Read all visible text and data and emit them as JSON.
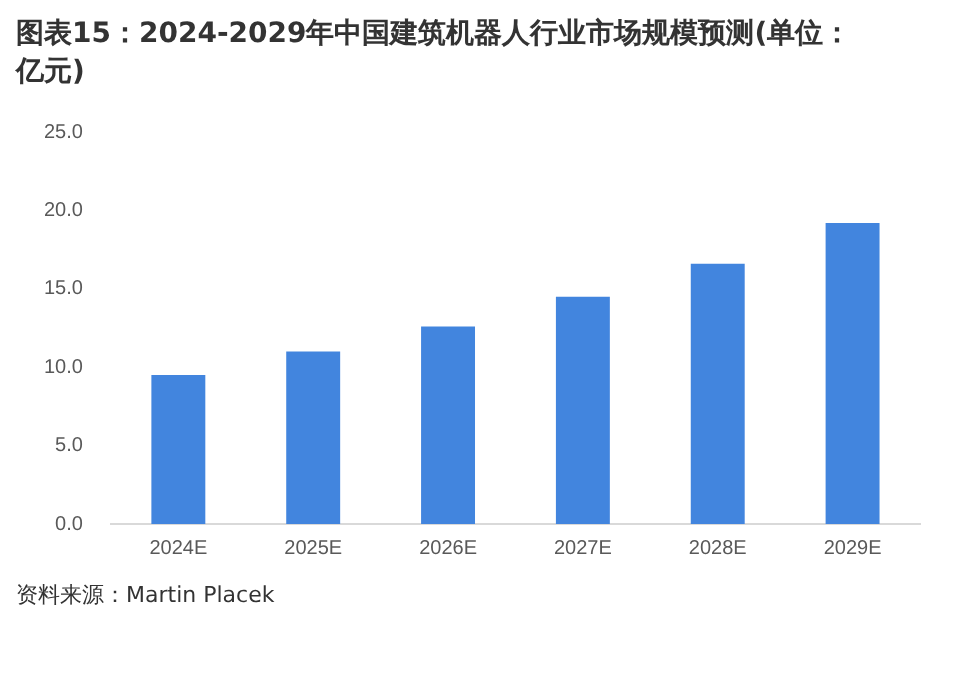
{
  "chart_data": {
    "type": "bar",
    "title": "图表15：2024-2029年中国建筑机器人行业市场规模预测(单位：亿元)",
    "categories": [
      "2024E",
      "2025E",
      "2026E",
      "2027E",
      "2028E",
      "2029E"
    ],
    "values": [
      9.5,
      11.0,
      12.6,
      14.5,
      16.6,
      19.2
    ],
    "color": "#4285de",
    "ylim": [
      0,
      25
    ],
    "yticks": [
      {
        "value": 0,
        "label": "0.0"
      },
      {
        "value": 5,
        "label": "5.0"
      },
      {
        "value": 10,
        "label": "10.0"
      },
      {
        "value": 15,
        "label": "15.0"
      },
      {
        "value": 20,
        "label": "20.0"
      },
      {
        "value": 25,
        "label": "25.0"
      }
    ],
    "grid": false,
    "legend": false,
    "annotations": [
      "资料来源：Martin Placek"
    ]
  }
}
